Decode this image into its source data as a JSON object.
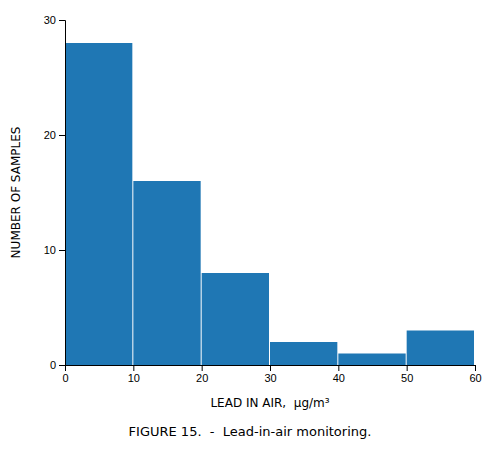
{
  "chart_data": {
    "type": "histogram",
    "bins": [
      0,
      10,
      20,
      30,
      40,
      50,
      60
    ],
    "values": [
      28,
      16,
      8,
      2,
      1,
      3
    ],
    "xlabel": "LEAD IN AIR,  μg/m³",
    "ylabel": "NUMBER OF SAMPLES",
    "caption": "FIGURE 15.  -  Lead-in-air monitoring.",
    "xlim": [
      0,
      60
    ],
    "xticks": [
      0,
      10,
      20,
      30,
      40,
      50,
      60
    ],
    "ylim": [
      0,
      30
    ],
    "yticks": [
      0,
      10,
      20,
      30
    ],
    "grid": false
  }
}
